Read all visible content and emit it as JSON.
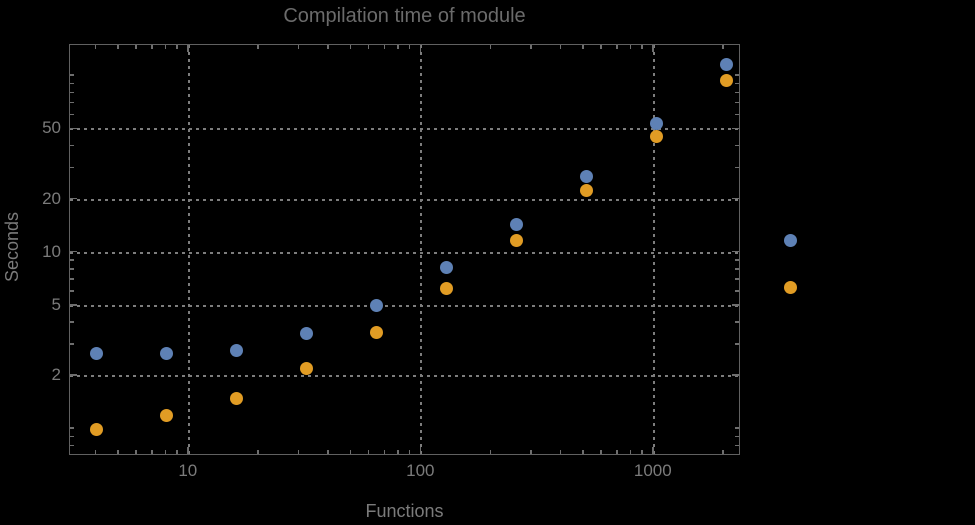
{
  "chart_data": {
    "type": "scatter",
    "title": "Compilation time of module",
    "xlabel": "Functions",
    "ylabel": "Seconds",
    "x_scale": "log",
    "y_scale": "log",
    "xlim": [
      3.1,
      2370
    ],
    "ylim": [
      0.7,
      150
    ],
    "grid": "dotted lines at labeled major ticks only",
    "x": [
      4,
      8,
      16,
      32,
      64,
      128,
      256,
      512,
      1024,
      2048
    ],
    "series": [
      {
        "name": "series-1-blue",
        "color": "#5E81B5",
        "values": [
          2.7,
          2.7,
          2.8,
          3.5,
          5.0,
          8.2,
          14.4,
          27,
          54,
          116
        ]
      },
      {
        "name": "series-2-orange",
        "color": "#E19C24",
        "values": [
          1.0,
          1.2,
          1.5,
          2.2,
          3.55,
          6.3,
          11.8,
          22.4,
          45.5,
          94
        ]
      }
    ],
    "x_ticks": {
      "major": [
        10,
        100,
        1000
      ],
      "major_labels": [
        "10",
        "100",
        "1000"
      ],
      "minor": [
        4,
        5,
        6,
        7,
        8,
        9,
        20,
        30,
        40,
        50,
        60,
        70,
        80,
        90,
        200,
        300,
        400,
        500,
        600,
        700,
        800,
        900,
        2000
      ]
    },
    "y_ticks": {
      "major": [
        2,
        5,
        10,
        20,
        50
      ],
      "major_labels": [
        "2",
        "5",
        "10",
        "20",
        "50"
      ],
      "minor": [
        0.8,
        0.9,
        1,
        3,
        4,
        6,
        7,
        8,
        9,
        30,
        40,
        60,
        70,
        80,
        90,
        100
      ]
    },
    "legend": {
      "position": "right-of-plot",
      "marker_colors": [
        "#5E81B5",
        "#E19C24"
      ],
      "labels_visible": false
    }
  },
  "colors": {
    "background": "#000000",
    "frame": "#616161",
    "grid": "#7d7d7d",
    "tick": "#6e6e6e",
    "label_text": "#7b7b7b",
    "title_text": "#6b6b6b"
  }
}
